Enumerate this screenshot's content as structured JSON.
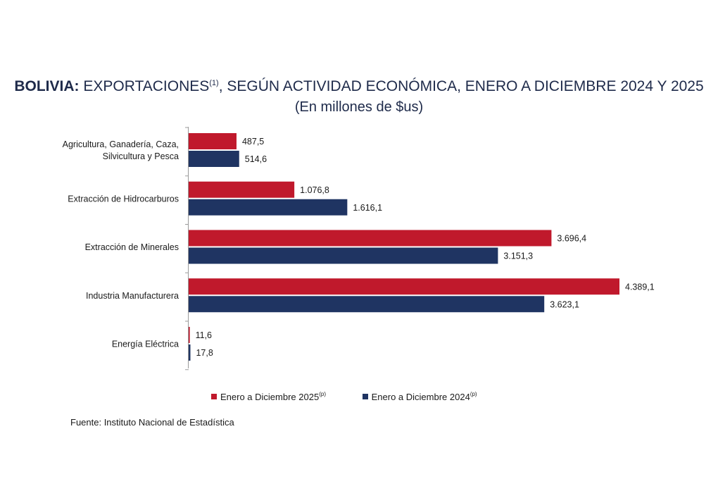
{
  "header": {
    "title_bold": "BOLIVIA:",
    "title_main": " EXPORTACIONES",
    "title_sup": "(1)",
    "title_rest": ", SEGÚN ACTIVIDAD ECONÓMICA, ENERO A DICIEMBRE 2024 Y 2025",
    "subtitle": "(En millones de $us)"
  },
  "chart_data": {
    "type": "bar",
    "orientation": "horizontal",
    "title": "BOLIVIA: EXPORTACIONES(1), SEGÚN ACTIVIDAD ECONÓMICA, ENERO A DICIEMBRE 2024 Y 2025",
    "subtitle": "(En millones de $us)",
    "categories": [
      [
        "Agricultura, Ganadería, Caza,",
        "Silvicultura y Pesca"
      ],
      [
        "Extracción de Hidrocarburos"
      ],
      [
        "Extracción de Minerales"
      ],
      [
        "Industria Manufacturera"
      ],
      [
        "Energía Eléctrica"
      ]
    ],
    "series": [
      {
        "name": "Enero a Diciembre  2025",
        "sup": "(p)",
        "color": "#c0192c",
        "values": [
          487.5,
          1076.8,
          3696.4,
          4389.1,
          11.6
        ],
        "labels": [
          "487,5",
          "1.076,8",
          "3.696,4",
          "4.389,1",
          "11,6"
        ]
      },
      {
        "name": "Enero a Diciembre 2024",
        "sup": "(p)",
        "color": "#1f3462",
        "values": [
          514.6,
          1616.1,
          3151.3,
          3623.1,
          17.8
        ],
        "labels": [
          "514,6",
          "1.616,1",
          "3.151,3",
          "3.623,1",
          "17,8"
        ]
      }
    ],
    "xlim": [
      0,
      4500
    ],
    "grid": false,
    "legend_position": "bottom"
  },
  "source": "Fuente: Instituto Nacional de Estadística"
}
